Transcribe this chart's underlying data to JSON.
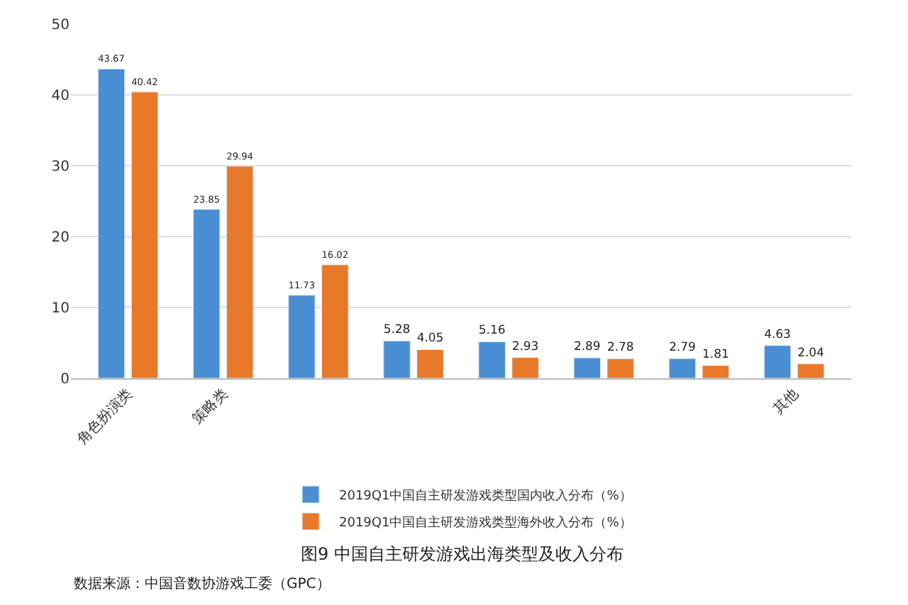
{
  "chart_data": {
    "type": "bar",
    "title": "图9 中国自主研发游戏出海类型及收入分布",
    "categories": [
      "角色扮演类",
      "策略类",
      null,
      null,
      null,
      null,
      null,
      "其他"
    ],
    "series": [
      {
        "name": "2019Q1中国自主研发游戏类型国内收入分布（%）",
        "color": "#4a8fd4",
        "values": [
          43.67,
          23.85,
          11.73,
          5.28,
          5.16,
          2.89,
          2.79,
          4.63
        ]
      },
      {
        "name": "2019Q1中国自主研发游戏类型海外收入分布（%）",
        "color": "#e8792a",
        "values": [
          40.42,
          29.94,
          16.02,
          4.05,
          2.93,
          2.78,
          1.81,
          2.04
        ]
      }
    ],
    "ylim": [
      0,
      50
    ],
    "yticks": [
      0,
      10,
      20,
      30,
      40,
      50
    ],
    "grid": "y",
    "legend": "bottom",
    "data_labels": true,
    "annotations": [
      "数据来源：中国音数协游戏工委（GPC）"
    ]
  }
}
